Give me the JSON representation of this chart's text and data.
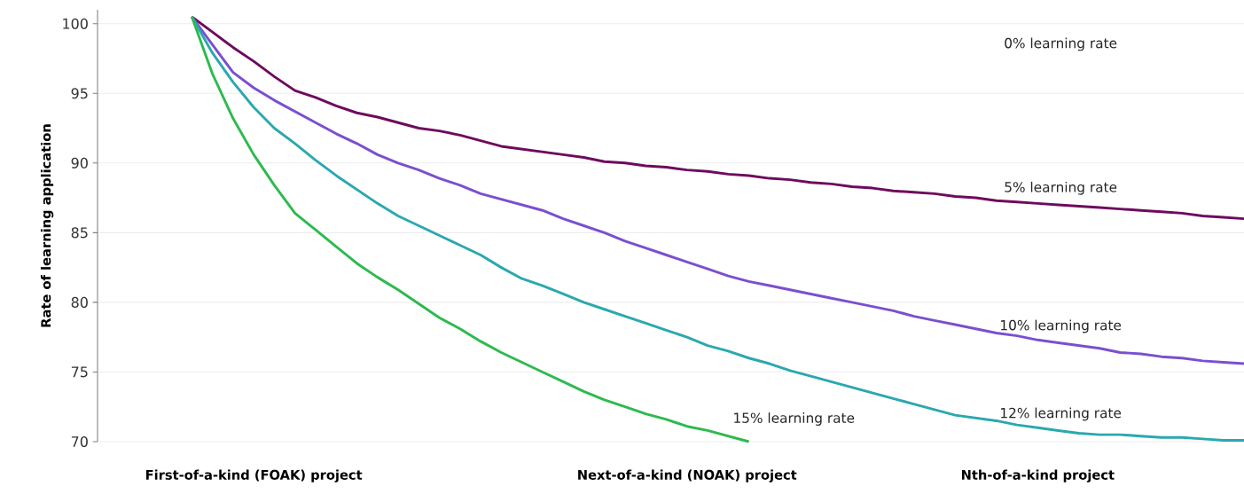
{
  "chart_data": {
    "type": "line",
    "ylabel": "Rate of learning application",
    "categories": [
      null,
      null,
      null,
      "First-of-a-kind (FOAK) project",
      null,
      null,
      null,
      null,
      null,
      null,
      null,
      null,
      null,
      null,
      null,
      null,
      null,
      null,
      null,
      null,
      null,
      null,
      null,
      null,
      "Next-of-a-kind (NOAK) project",
      null,
      null,
      null,
      null,
      null,
      null,
      null,
      null,
      null,
      null,
      null,
      null,
      null,
      null,
      null,
      null,
      "Nth-of-a-kind project",
      null,
      null,
      null,
      null,
      null,
      null,
      null,
      null,
      null,
      null
    ],
    "ylim": [
      70,
      101
    ],
    "yticks": [
      70,
      75,
      80,
      85,
      90,
      95,
      100
    ],
    "grid": "y",
    "annotations": [
      "0% learning rate"
    ],
    "series": [
      {
        "name": "5% learning rate",
        "color": "#6e0a5e",
        "values": [
          100.5,
          99.4,
          98.3,
          97.3,
          96.2,
          95.2,
          94.7,
          94.1,
          93.6,
          93.3,
          92.9,
          92.5,
          92.3,
          92.0,
          91.6,
          91.2,
          91.0,
          90.8,
          90.6,
          90.4,
          90.1,
          90.0,
          89.8,
          89.7,
          89.5,
          89.4,
          89.2,
          89.1,
          88.9,
          88.8,
          88.6,
          88.5,
          88.3,
          88.2,
          88.0,
          87.9,
          87.8,
          87.6,
          87.5,
          87.3,
          87.2,
          87.1,
          87.0,
          86.9,
          86.8,
          86.7,
          86.6,
          86.5,
          86.4,
          86.2,
          86.1,
          86.0
        ]
      },
      {
        "name": "10% learning rate",
        "color": "#7a4fd0",
        "values": [
          100.5,
          98.5,
          96.5,
          95.4,
          94.5,
          93.7,
          92.9,
          92.1,
          91.4,
          90.6,
          90.0,
          89.5,
          88.9,
          88.4,
          87.8,
          87.4,
          87.0,
          86.6,
          86.0,
          85.5,
          85.0,
          84.4,
          83.9,
          83.4,
          82.9,
          82.4,
          81.9,
          81.5,
          81.2,
          80.9,
          80.6,
          80.3,
          80.0,
          79.7,
          79.4,
          79.0,
          78.7,
          78.4,
          78.1,
          77.8,
          77.6,
          77.3,
          77.1,
          76.9,
          76.7,
          76.4,
          76.3,
          76.1,
          76.0,
          75.8,
          75.7,
          75.6
        ]
      },
      {
        "name": "12% learning rate",
        "color": "#2aa8b0",
        "values": [
          100.5,
          97.9,
          95.8,
          94.0,
          92.5,
          91.4,
          90.2,
          89.1,
          88.1,
          87.1,
          86.2,
          85.5,
          84.8,
          84.1,
          83.4,
          82.5,
          81.7,
          81.2,
          80.6,
          80.0,
          79.5,
          79.0,
          78.5,
          78.0,
          77.5,
          76.9,
          76.5,
          76.0,
          75.6,
          75.1,
          74.7,
          74.3,
          73.9,
          73.5,
          73.1,
          72.7,
          72.3,
          71.9,
          71.7,
          71.5,
          71.2,
          71.0,
          70.8,
          70.6,
          70.5,
          70.5,
          70.4,
          70.3,
          70.3,
          70.2,
          70.1,
          70.1
        ]
      },
      {
        "name": "15% learning rate",
        "color": "#2dba4e",
        "values": [
          100.5,
          96.4,
          93.2,
          90.6,
          88.4,
          86.4,
          85.2,
          84.0,
          82.8,
          81.8,
          80.9,
          79.9,
          78.9,
          78.1,
          77.2,
          76.4,
          75.7,
          75.0,
          74.3,
          73.6,
          73.0,
          72.5,
          72.0,
          71.6,
          71.1,
          70.8,
          70.4,
          70.0,
          null,
          null,
          null,
          null,
          null,
          null,
          null,
          null,
          null,
          null,
          null,
          null,
          null,
          null,
          null,
          null,
          null,
          null,
          null,
          null,
          null,
          null,
          null,
          null
        ]
      }
    ]
  }
}
